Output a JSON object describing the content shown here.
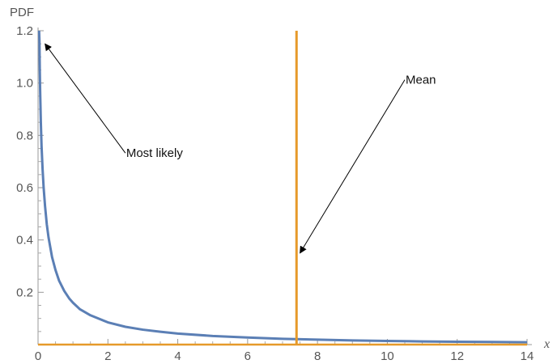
{
  "chart_data": {
    "type": "line",
    "xlabel": "x",
    "ylabel": "PDF",
    "xlim": [
      0,
      14
    ],
    "ylim": [
      0,
      1.2
    ],
    "x_ticks": [
      0,
      2,
      4,
      6,
      8,
      10,
      12,
      14
    ],
    "x_tick_labels": [
      "0",
      "2",
      "4",
      "6",
      "8",
      "10",
      "12",
      "14"
    ],
    "y_ticks": [
      0.2,
      0.4,
      0.6,
      0.8,
      1.0,
      1.2
    ],
    "y_tick_labels": [
      "0.2",
      "0.4",
      "0.6",
      "0.8",
      "1.0",
      "1.2"
    ],
    "grid": false,
    "series": [
      {
        "color": "#5b7fb5",
        "x": [
          0.03,
          0.04,
          0.05,
          0.06,
          0.08,
          0.1,
          0.13,
          0.16,
          0.2,
          0.25,
          0.3,
          0.4,
          0.5,
          0.6,
          0.75,
          0.9,
          1.0,
          1.2,
          1.5,
          2.0,
          2.5,
          3.0,
          3.5,
          4.0,
          5.0,
          6.0,
          7.0,
          8.0,
          9.0,
          10.0,
          11.0,
          12.0,
          13.0,
          14.0
        ],
        "y": [
          1.2,
          1.16,
          1.05,
          0.97,
          0.85,
          0.76,
          0.67,
          0.6,
          0.53,
          0.46,
          0.41,
          0.335,
          0.285,
          0.245,
          0.205,
          0.175,
          0.16,
          0.135,
          0.112,
          0.085,
          0.068,
          0.057,
          0.049,
          0.042,
          0.033,
          0.027,
          0.022,
          0.019,
          0.016,
          0.014,
          0.012,
          0.011,
          0.01,
          0.009
        ]
      },
      {
        "color": "#e69a2a",
        "type": "vertical-line",
        "x": [
          7.4,
          7.4
        ],
        "y": [
          0,
          1.2
        ]
      },
      {
        "color": "#e69a2a",
        "type": "baseline",
        "x": [
          0,
          14
        ],
        "y": [
          0,
          0
        ]
      }
    ],
    "annotations": [
      {
        "text": "Most likely",
        "text_at": [
          2.5,
          0.72
        ],
        "arrow_to": [
          0.2,
          1.15
        ]
      },
      {
        "text": "Mean",
        "text_at": [
          10.5,
          1.0
        ],
        "arrow_to": [
          7.5,
          0.35
        ]
      }
    ]
  }
}
